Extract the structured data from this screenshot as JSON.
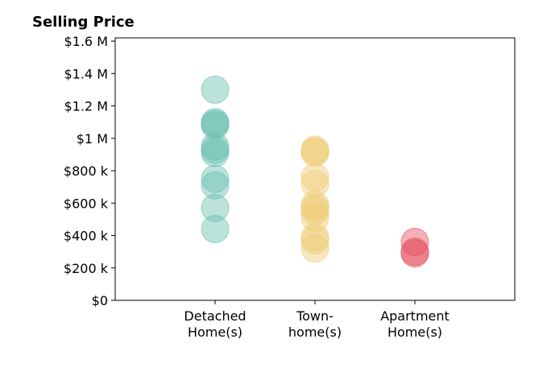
{
  "chart_data": {
    "type": "scatter",
    "title": "Selling Price",
    "xlabel": "",
    "ylabel": "",
    "categories": [
      {
        "lines": [
          "Detached",
          "Home(s)"
        ]
      },
      {
        "lines": [
          "Town-",
          "home(s)"
        ]
      },
      {
        "lines": [
          "Apartment",
          "Home(s)"
        ]
      }
    ],
    "ylim": [
      0,
      1620000
    ],
    "yticks": [
      {
        "value": 0,
        "label": "$0"
      },
      {
        "value": 200000,
        "label": "$200 k"
      },
      {
        "value": 400000,
        "label": "$400 k"
      },
      {
        "value": 600000,
        "label": "$600 k"
      },
      {
        "value": 800000,
        "label": "$800 k"
      },
      {
        "value": 1000000,
        "label": "$1 M"
      },
      {
        "value": 1200000,
        "label": "$1.2 M"
      },
      {
        "value": 1400000,
        "label": "$1.4 M"
      },
      {
        "value": 1600000,
        "label": "$1.6 M"
      }
    ],
    "grid": false,
    "series": [
      {
        "category_index": 0,
        "color": "#6abfb1",
        "values": [
          1300000,
          1100000,
          1090000,
          1080000,
          950000,
          930000,
          910000,
          750000,
          710000,
          570000,
          440000
        ]
      },
      {
        "category_index": 1,
        "color": "#efcb75",
        "values": [
          930000,
          920000,
          910000,
          760000,
          720000,
          590000,
          570000,
          550000,
          510000,
          390000,
          370000,
          320000
        ]
      },
      {
        "category_index": 2,
        "color": "#e45060",
        "values": [
          360000,
          300000,
          290000
        ]
      }
    ]
  }
}
